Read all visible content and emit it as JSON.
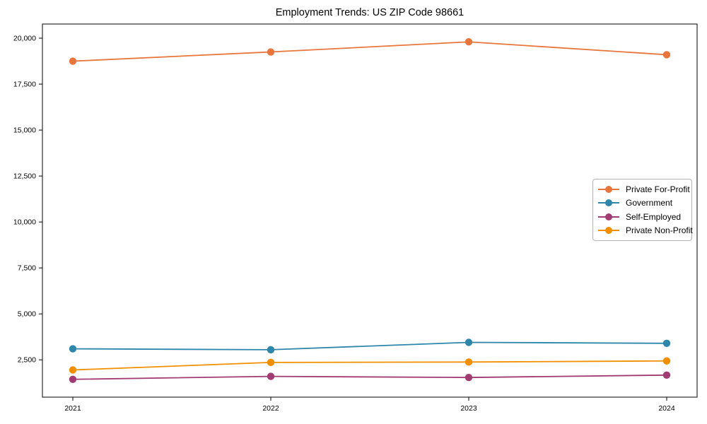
{
  "chart_data": {
    "type": "line",
    "title": "Employment Trends: US ZIP Code 98661",
    "categories": [
      "2021",
      "2022",
      "2023",
      "2024"
    ],
    "series": [
      {
        "name": "Private For-Profit",
        "color": "#E8763C",
        "values": [
          18750,
          19250,
          19800,
          19100
        ]
      },
      {
        "name": "Government",
        "color": "#2E86AB",
        "values": [
          3100,
          3050,
          3450,
          3400
        ]
      },
      {
        "name": "Self-Employed",
        "color": "#A23B72",
        "values": [
          1440,
          1600,
          1540,
          1670
        ]
      },
      {
        "name": "Private Non-Profit",
        "color": "#F18F01",
        "values": [
          1950,
          2360,
          2380,
          2440
        ]
      }
    ],
    "xlabel": "",
    "ylabel": "",
    "ylim": [
      470,
      20770
    ],
    "yticks": [
      2500,
      5000,
      7500,
      10000,
      12500,
      15000,
      17500,
      20000
    ],
    "ytick_labels": [
      "2,500",
      "5,000",
      "7,500",
      "10,000",
      "12,500",
      "15,000",
      "17,500",
      "20,000"
    ],
    "grid": false,
    "legend_position": "center-right",
    "marker": "circle",
    "background": "#ffffff",
    "axis_color": "#000000"
  }
}
